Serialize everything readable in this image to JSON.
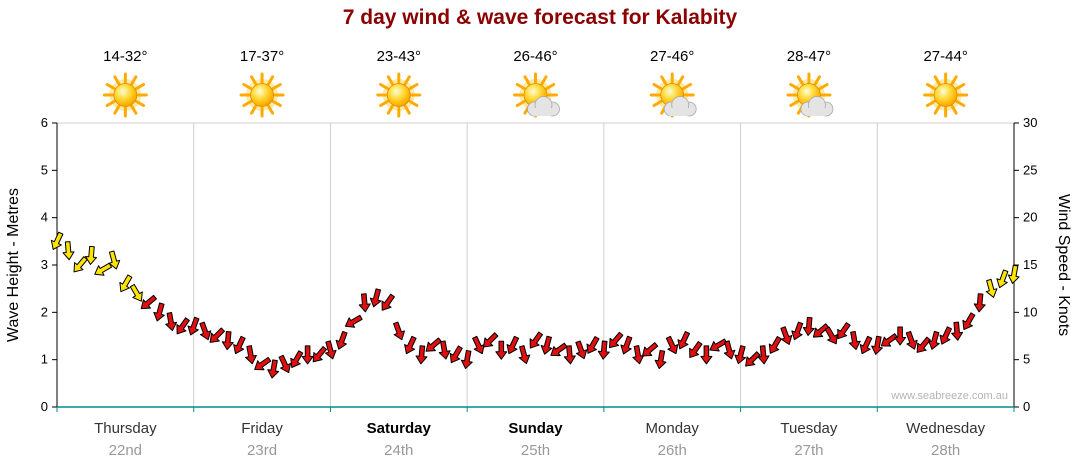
{
  "title": "7 day wind & wave forecast for Kalabity",
  "watermark": "www.seabreeze.com.au",
  "days": [
    {
      "name": "Thursday",
      "date": "22nd",
      "temp": "14-32°",
      "icon": "sun",
      "bold": false
    },
    {
      "name": "Friday",
      "date": "23rd",
      "temp": "17-37°",
      "icon": "sun",
      "bold": false
    },
    {
      "name": "Saturday",
      "date": "24th",
      "temp": "23-43°",
      "icon": "sun",
      "bold": true
    },
    {
      "name": "Sunday",
      "date": "25th",
      "temp": "26-46°",
      "icon": "sun-cloud",
      "bold": true
    },
    {
      "name": "Monday",
      "date": "26th",
      "temp": "27-46°",
      "icon": "sun-cloud",
      "bold": false
    },
    {
      "name": "Tuesday",
      "date": "27th",
      "temp": "28-47°",
      "icon": "sun-cloud",
      "bold": false
    },
    {
      "name": "Wednesday",
      "date": "28th",
      "temp": "27-44°",
      "icon": "sun",
      "bold": false
    }
  ],
  "chart_data": {
    "type": "line",
    "title": "7 day wind & wave forecast for Kalabity",
    "categories": [
      "Thursday 22nd",
      "Friday 23rd",
      "Saturday 24th",
      "Sunday 25th",
      "Monday 26th",
      "Tuesday 27th",
      "Wednesday 28th"
    ],
    "left_axis": {
      "label": "Wave Height - Metres",
      "range": [
        0,
        6
      ],
      "ticks": [
        0,
        1,
        2,
        3,
        4,
        5,
        6
      ]
    },
    "right_axis": {
      "label": "Wind Speed - Knots",
      "range": [
        0,
        30
      ],
      "ticks": [
        0,
        5,
        10,
        15,
        20,
        25,
        30
      ]
    },
    "x_axis": {
      "unit": "hours",
      "range": [
        0,
        168
      ],
      "grid": "vertical day boundaries"
    },
    "legend": "none",
    "marker": "wind-direction-arrow",
    "colors": {
      "strong_wind": "#ffe400",
      "light_wind": "#e01010",
      "threshold_knots": 12,
      "bottom_axis": "#008b8b",
      "grid": "#cfcfcf"
    },
    "series": [
      {
        "name": "Wind Speed",
        "unit": "knots",
        "point_format": [
          "hour_offset",
          "knots",
          "direction_deg"
        ],
        "points": [
          [
            0,
            17.5,
            205
          ],
          [
            2,
            16.5,
            175
          ],
          [
            4,
            15,
            220
          ],
          [
            6,
            16,
            185
          ],
          [
            8,
            14.5,
            240
          ],
          [
            10,
            15.5,
            165
          ],
          [
            12,
            13,
            210
          ],
          [
            14,
            12,
            150
          ],
          [
            16,
            11,
            230
          ],
          [
            18,
            10,
            195
          ],
          [
            20,
            9,
            170
          ],
          [
            22,
            8.5,
            215
          ],
          [
            24,
            8.5,
            200
          ],
          [
            26,
            8,
            160
          ],
          [
            28,
            7.5,
            225
          ],
          [
            30,
            7,
            185
          ],
          [
            32,
            6.5,
            205
          ],
          [
            34,
            5.5,
            170
          ],
          [
            36,
            4.5,
            235
          ],
          [
            38,
            4,
            190
          ],
          [
            40,
            4.5,
            155
          ],
          [
            42,
            5,
            210
          ],
          [
            44,
            5.5,
            180
          ],
          [
            46,
            5.5,
            220
          ],
          [
            48,
            6,
            165
          ],
          [
            50,
            7,
            200
          ],
          [
            52,
            9,
            240
          ],
          [
            54,
            11,
            175
          ],
          [
            56,
            11.5,
            195
          ],
          [
            58,
            11,
            215
          ],
          [
            60,
            8,
            160
          ],
          [
            62,
            6.5,
            205
          ],
          [
            64,
            5.5,
            185
          ],
          [
            66,
            6.5,
            230
          ],
          [
            68,
            6,
            170
          ],
          [
            70,
            5.5,
            210
          ],
          [
            72,
            5,
            190
          ],
          [
            74,
            6.5,
            155
          ],
          [
            76,
            7,
            225
          ],
          [
            78,
            6,
            180
          ],
          [
            80,
            6.5,
            205
          ],
          [
            82,
            5.5,
            165
          ],
          [
            84,
            7,
            215
          ],
          [
            86,
            6.5,
            195
          ],
          [
            88,
            6,
            235
          ],
          [
            90,
            5.5,
            175
          ],
          [
            92,
            6,
            160
          ],
          [
            94,
            6.5,
            210
          ],
          [
            96,
            6,
            185
          ],
          [
            98,
            7,
            220
          ],
          [
            100,
            6.5,
            200
          ],
          [
            102,
            5.5,
            170
          ],
          [
            104,
            6,
            230
          ],
          [
            106,
            5,
            190
          ],
          [
            108,
            6.5,
            155
          ],
          [
            110,
            7,
            205
          ],
          [
            112,
            6,
            215
          ],
          [
            114,
            5.5,
            180
          ],
          [
            116,
            6.5,
            240
          ],
          [
            118,
            6,
            165
          ],
          [
            120,
            5.5,
            195
          ],
          [
            122,
            5,
            225
          ],
          [
            124,
            5.5,
            175
          ],
          [
            126,
            6.5,
            210
          ],
          [
            128,
            7.5,
            160
          ],
          [
            130,
            8,
            200
          ],
          [
            132,
            8.5,
            185
          ],
          [
            134,
            8,
            230
          ],
          [
            136,
            7.5,
            150
          ],
          [
            138,
            8,
            215
          ],
          [
            140,
            7,
            170
          ],
          [
            142,
            6.5,
            205
          ],
          [
            144,
            6.5,
            190
          ],
          [
            146,
            7,
            235
          ],
          [
            148,
            7.5,
            180
          ],
          [
            150,
            7,
            160
          ],
          [
            152,
            6.5,
            220
          ],
          [
            154,
            7,
            195
          ],
          [
            156,
            7.5,
            205
          ],
          [
            158,
            8,
            175
          ],
          [
            160,
            9,
            210
          ],
          [
            162,
            11,
            185
          ],
          [
            164,
            12.5,
            165
          ],
          [
            166,
            13.5,
            200
          ],
          [
            168,
            14,
            190
          ]
        ]
      }
    ]
  }
}
